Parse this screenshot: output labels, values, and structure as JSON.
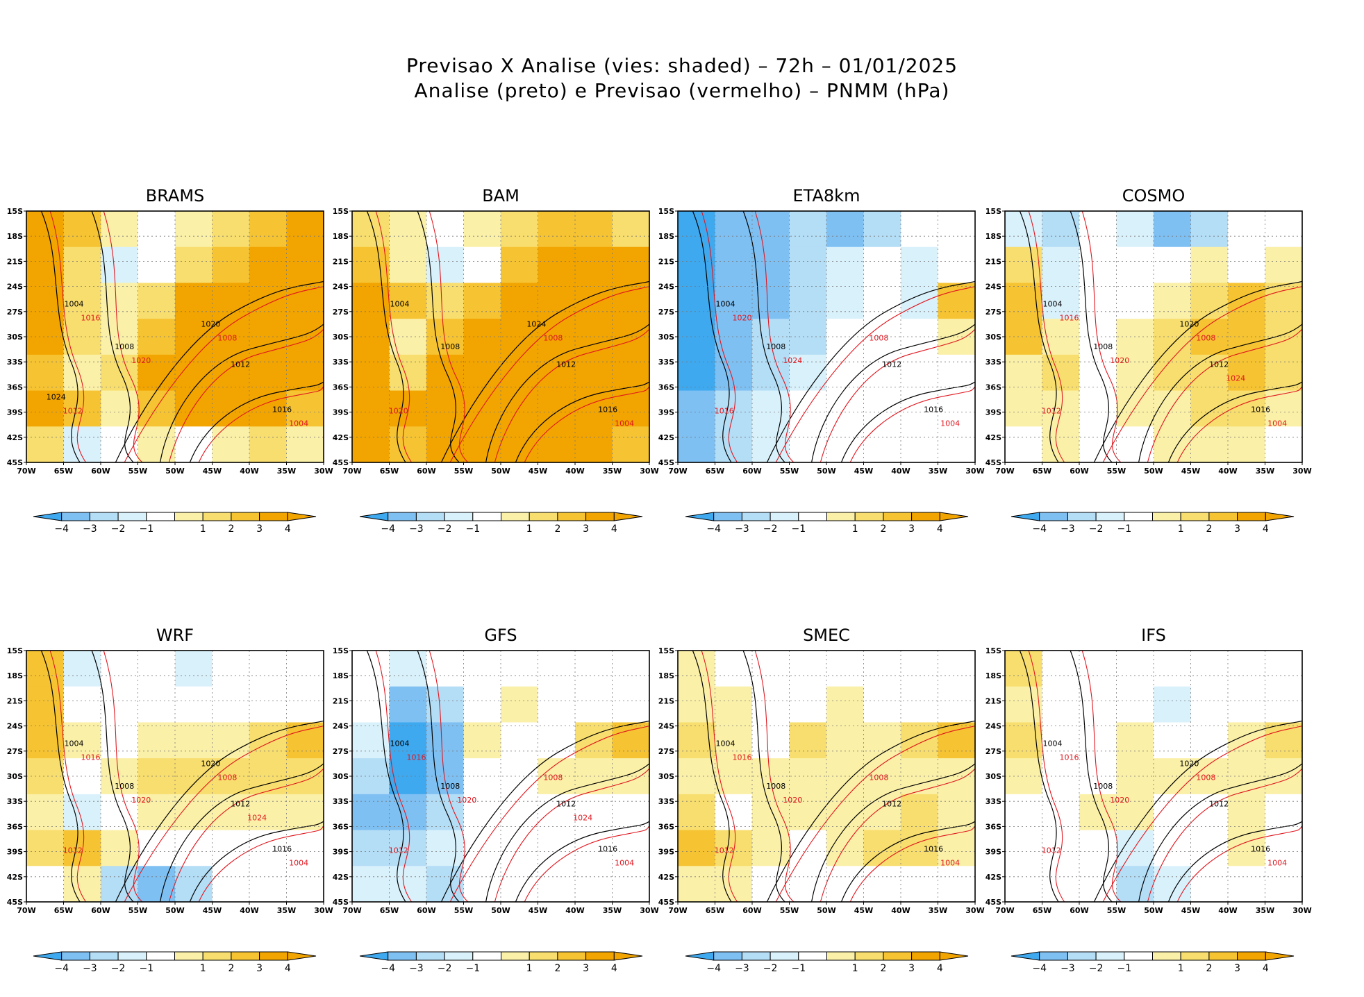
{
  "figure": {
    "title_line1": "Previsao X Analise (vies: shaded) – 72h – 01/01/2025",
    "title_line2": "Analise (preto) e Previsao (vermelho) – PNMM (hPa)"
  },
  "colors": {
    "neg4": "#3fa9f0",
    "neg3": "#7fc0f3",
    "neg2": "#b4ddf6",
    "neg1": "#d9f1fb",
    "pos1": "#fbf0a8",
    "pos2": "#f8de6e",
    "pos3": "#f6c332",
    "pos4": "#f2a400",
    "analysis_line": "#000000",
    "forecast_line": "#e0161e",
    "grid": "#777777"
  },
  "chart_data": {
    "type": "heatmap",
    "variable": "PNMM (hPa)",
    "bias_shading": "vies: shaded",
    "forecast_lead": "72h",
    "date": "01/01/2025",
    "x_ticks": [
      "70W",
      "65W",
      "60W",
      "55W",
      "50W",
      "45W",
      "40W",
      "35W",
      "30W"
    ],
    "y_ticks": [
      "15S",
      "18S",
      "21S",
      "24S",
      "27S",
      "30S",
      "33S",
      "36S",
      "39S",
      "42S",
      "45S"
    ],
    "lon_range": [
      -70,
      -30
    ],
    "lat_range": [
      -45,
      -15
    ],
    "colorbar": {
      "ticks": [
        "−4",
        "−3",
        "−2",
        "−1",
        "1",
        "2",
        "3",
        "4"
      ],
      "bins": [
        "neg4",
        "neg3",
        "neg2",
        "neg1",
        "zero",
        "pos1",
        "pos2",
        "pos3",
        "pos4",
        "pos4"
      ]
    },
    "panels": [
      {
        "name": "BRAMS",
        "field": [
          [
            "pos4",
            "pos3",
            "pos1",
            "zero",
            "pos1",
            "pos2",
            "pos3",
            "pos4"
          ],
          [
            "pos4",
            "pos2",
            "neg1",
            "zero",
            "pos2",
            "pos3",
            "pos4",
            "pos4"
          ],
          [
            "pos4",
            "pos2",
            "pos1",
            "pos2",
            "pos4",
            "pos4",
            "pos4",
            "pos4"
          ],
          [
            "pos4",
            "pos2",
            "pos1",
            "pos3",
            "pos4",
            "pos4",
            "pos4",
            "pos4"
          ],
          [
            "pos3",
            "pos1",
            "pos2",
            "pos4",
            "pos4",
            "pos4",
            "pos4",
            "pos4"
          ],
          [
            "pos4",
            "pos3",
            "pos1",
            "pos3",
            "pos4",
            "pos4",
            "pos4",
            "pos3"
          ],
          [
            "pos2",
            "neg1",
            "zero",
            "pos1",
            "zero",
            "pos1",
            "pos2",
            "pos1"
          ]
        ],
        "labels_black": [
          "1004",
          "1008",
          "1012",
          "1016",
          "1020",
          "1024"
        ],
        "labels_red": [
          "1004",
          "1008",
          "1012",
          "1016",
          "1020"
        ]
      },
      {
        "name": "BAM",
        "field": [
          [
            "pos2",
            "pos1",
            "zero",
            "pos1",
            "pos2",
            "pos3",
            "pos3",
            "pos2"
          ],
          [
            "pos3",
            "pos1",
            "neg1",
            "zero",
            "pos3",
            "pos4",
            "pos4",
            "pos4"
          ],
          [
            "pos4",
            "pos3",
            "pos2",
            "pos3",
            "pos4",
            "pos4",
            "pos4",
            "pos4"
          ],
          [
            "pos4",
            "pos1",
            "pos3",
            "pos4",
            "pos4",
            "pos4",
            "pos4",
            "pos4"
          ],
          [
            "pos4",
            "pos2",
            "pos4",
            "pos4",
            "pos4",
            "pos4",
            "pos4",
            "pos4"
          ],
          [
            "pos4",
            "pos4",
            "pos4",
            "pos4",
            "pos4",
            "pos4",
            "pos4",
            "pos4"
          ],
          [
            "pos4",
            "pos3",
            "pos4",
            "pos4",
            "pos4",
            "pos4",
            "pos4",
            "pos3"
          ]
        ],
        "labels_black": [
          "1004",
          "1008",
          "1012",
          "1016",
          "1024"
        ],
        "labels_red": [
          "1004",
          "1008",
          "1020"
        ]
      },
      {
        "name": "ETA8km",
        "field": [
          [
            "neg4",
            "neg3",
            "neg3",
            "neg2",
            "neg3",
            "neg2",
            "zero",
            "zero"
          ],
          [
            "neg4",
            "neg3",
            "neg3",
            "neg2",
            "neg1",
            "zero",
            "neg1",
            "zero"
          ],
          [
            "neg4",
            "neg3",
            "neg3",
            "neg2",
            "neg1",
            "zero",
            "neg1",
            "pos3"
          ],
          [
            "neg4",
            "neg3",
            "neg2",
            "neg2",
            "zero",
            "zero",
            "zero",
            "pos1"
          ],
          [
            "neg4",
            "neg3",
            "neg2",
            "neg1",
            "zero",
            "zero",
            "zero",
            "zero"
          ],
          [
            "neg3",
            "neg2",
            "neg1",
            "zero",
            "zero",
            "zero",
            "zero",
            "zero"
          ],
          [
            "neg3",
            "neg2",
            "neg1",
            "zero",
            "zero",
            "zero",
            "zero",
            "zero"
          ]
        ],
        "labels_black": [
          "1004",
          "1008",
          "1012",
          "1016"
        ],
        "labels_red": [
          "1004",
          "1008",
          "1016",
          "1020",
          "1024"
        ]
      },
      {
        "name": "COSMO",
        "field": [
          [
            "neg1",
            "neg2",
            "zero",
            "neg1",
            "neg3",
            "neg2",
            "zero",
            "zero"
          ],
          [
            "pos2",
            "neg1",
            "zero",
            "zero",
            "zero",
            "pos1",
            "zero",
            "pos1"
          ],
          [
            "pos3",
            "neg1",
            "zero",
            "zero",
            "pos1",
            "pos2",
            "pos3",
            "pos2"
          ],
          [
            "pos3",
            "pos1",
            "zero",
            "pos1",
            "pos2",
            "pos3",
            "pos3",
            "pos2"
          ],
          [
            "pos1",
            "pos2",
            "zero",
            "pos1",
            "pos2",
            "pos2",
            "pos3",
            "pos2"
          ],
          [
            "pos1",
            "pos1",
            "zero",
            "pos1",
            "pos1",
            "pos2",
            "pos2",
            "pos1"
          ],
          [
            "zero",
            "pos1",
            "zero",
            "zero",
            "pos1",
            "pos1",
            "pos1",
            "zero"
          ]
        ],
        "labels_black": [
          "1004",
          "1008",
          "1012",
          "1016",
          "1020"
        ],
        "labels_red": [
          "1004",
          "1008",
          "1012",
          "1016",
          "1020",
          "1024"
        ]
      },
      {
        "name": "WRF",
        "field": [
          [
            "pos3",
            "neg1",
            "zero",
            "zero",
            "neg1",
            "zero",
            "zero",
            "zero"
          ],
          [
            "pos3",
            "zero",
            "zero",
            "zero",
            "zero",
            "zero",
            "zero",
            "zero"
          ],
          [
            "pos3",
            "pos1",
            "zero",
            "pos1",
            "pos1",
            "pos1",
            "pos2",
            "pos3"
          ],
          [
            "pos2",
            "zero",
            "pos1",
            "pos2",
            "pos2",
            "pos2",
            "pos2",
            "pos2"
          ],
          [
            "pos1",
            "neg1",
            "zero",
            "pos1",
            "pos1",
            "pos1",
            "pos1",
            "pos1"
          ],
          [
            "pos2",
            "pos3",
            "pos1",
            "zero",
            "zero",
            "zero",
            "zero",
            "zero"
          ],
          [
            "zero",
            "pos1",
            "neg2",
            "neg3",
            "neg2",
            "zero",
            "zero",
            "zero"
          ]
        ],
        "labels_black": [
          "1004",
          "1008",
          "1012",
          "1016",
          "1020"
        ],
        "labels_red": [
          "1004",
          "1008",
          "1012",
          "1016",
          "1020",
          "1024"
        ]
      },
      {
        "name": "GFS",
        "field": [
          [
            "zero",
            "neg1",
            "zero",
            "zero",
            "zero",
            "zero",
            "zero",
            "zero"
          ],
          [
            "zero",
            "neg3",
            "neg2",
            "zero",
            "pos1",
            "zero",
            "zero",
            "zero"
          ],
          [
            "neg1",
            "neg4",
            "neg3",
            "pos1",
            "zero",
            "zero",
            "pos2",
            "pos3"
          ],
          [
            "neg2",
            "neg4",
            "neg3",
            "zero",
            "zero",
            "pos1",
            "pos1",
            "pos1"
          ],
          [
            "neg3",
            "neg3",
            "neg2",
            "zero",
            "zero",
            "zero",
            "zero",
            "zero"
          ],
          [
            "neg2",
            "neg2",
            "neg1",
            "zero",
            "zero",
            "zero",
            "zero",
            "zero"
          ],
          [
            "neg1",
            "neg1",
            "neg2",
            "zero",
            "zero",
            "zero",
            "zero",
            "zero"
          ]
        ],
        "labels_black": [
          "1004",
          "1008",
          "1012",
          "1016"
        ],
        "labels_red": [
          "1004",
          "1008",
          "1012",
          "1016",
          "1020",
          "1024"
        ]
      },
      {
        "name": "SMEC",
        "field": [
          [
            "pos1",
            "zero",
            "zero",
            "zero",
            "zero",
            "zero",
            "zero",
            "zero"
          ],
          [
            "pos1",
            "pos1",
            "zero",
            "zero",
            "pos1",
            "zero",
            "zero",
            "zero"
          ],
          [
            "pos2",
            "pos1",
            "zero",
            "pos2",
            "pos1",
            "pos1",
            "pos2",
            "pos3"
          ],
          [
            "pos1",
            "pos1",
            "pos1",
            "pos1",
            "pos1",
            "pos1",
            "pos1",
            "pos1"
          ],
          [
            "pos2",
            "zero",
            "pos1",
            "pos1",
            "pos1",
            "pos1",
            "pos2",
            "pos1"
          ],
          [
            "pos3",
            "pos2",
            "pos1",
            "zero",
            "pos1",
            "pos2",
            "pos2",
            "pos1"
          ],
          [
            "pos1",
            "pos1",
            "zero",
            "zero",
            "zero",
            "zero",
            "zero",
            "zero"
          ]
        ],
        "labels_black": [
          "1004",
          "1008",
          "1012",
          "1016"
        ],
        "labels_red": [
          "1004",
          "1008",
          "1012",
          "1016",
          "1020"
        ]
      },
      {
        "name": "IFS",
        "field": [
          [
            "pos2",
            "zero",
            "zero",
            "zero",
            "zero",
            "zero",
            "zero",
            "zero"
          ],
          [
            "pos1",
            "zero",
            "zero",
            "zero",
            "neg1",
            "zero",
            "zero",
            "zero"
          ],
          [
            "pos2",
            "zero",
            "zero",
            "pos1",
            "zero",
            "zero",
            "pos1",
            "pos2"
          ],
          [
            "pos1",
            "zero",
            "zero",
            "pos1",
            "pos1",
            "pos1",
            "pos1",
            "pos1"
          ],
          [
            "zero",
            "zero",
            "pos1",
            "pos1",
            "zero",
            "zero",
            "pos1",
            "zero"
          ],
          [
            "zero",
            "zero",
            "zero",
            "neg1",
            "zero",
            "zero",
            "pos1",
            "zero"
          ],
          [
            "zero",
            "zero",
            "zero",
            "neg2",
            "neg1",
            "zero",
            "zero",
            "zero"
          ]
        ],
        "labels_black": [
          "1004",
          "1008",
          "1012",
          "1016",
          "1020"
        ],
        "labels_red": [
          "1004",
          "1008",
          "1012",
          "1016",
          "1020"
        ]
      }
    ]
  }
}
